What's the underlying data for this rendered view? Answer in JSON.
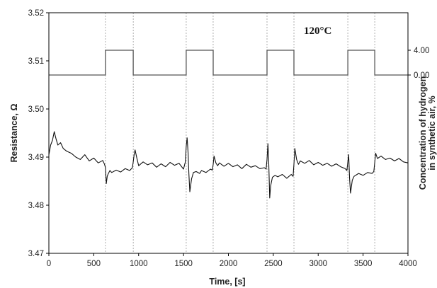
{
  "chart_data": {
    "type": "line",
    "xlabel": "Time, [s]",
    "ylabel": "Resistance, Ω",
    "y2label_line1": "Concentration of hydrogen",
    "y2label_line2": "in synthetic air, %",
    "annotation": "120°C",
    "xlim": [
      0,
      4000
    ],
    "ylim": [
      3.47,
      3.52
    ],
    "xticks": [
      "0",
      "500",
      "1000",
      "1500",
      "2000",
      "2500",
      "3000",
      "3500",
      "4000"
    ],
    "yticks": [
      "3.47",
      "3.48",
      "3.49",
      "3.50",
      "3.51",
      "3.52"
    ],
    "y2ticks": [
      "0.00",
      "4.00"
    ],
    "y2_values": [
      0.0,
      4.0
    ],
    "grid": "vertical dotted lines at gas switching times",
    "switch_times": [
      630,
      940,
      1530,
      1830,
      2430,
      2730,
      3330,
      3630
    ],
    "series": [
      {
        "role": "hydrogen concentration (right axis)",
        "x": [
          0,
          630,
          630,
          940,
          940,
          1530,
          1530,
          1830,
          1830,
          2430,
          2430,
          2730,
          2730,
          3330,
          3330,
          3630,
          3630,
          4000
        ],
        "values": [
          0,
          0,
          4,
          4,
          0,
          0,
          4,
          4,
          0,
          0,
          4,
          4,
          0,
          0,
          4,
          4,
          0,
          0
        ]
      },
      {
        "role": "resistance (left axis)",
        "x": [
          0,
          20,
          40,
          60,
          80,
          100,
          130,
          160,
          200,
          250,
          300,
          350,
          400,
          450,
          500,
          550,
          600,
          620,
          630,
          640,
          650,
          660,
          680,
          700,
          750,
          800,
          850,
          900,
          930,
          940,
          950,
          960,
          980,
          1000,
          1050,
          1100,
          1150,
          1200,
          1250,
          1300,
          1350,
          1400,
          1450,
          1500,
          1520,
          1530,
          1540,
          1550,
          1560,
          1570,
          1590,
          1610,
          1640,
          1680,
          1700,
          1750,
          1800,
          1820,
          1830,
          1840,
          1860,
          1880,
          1900,
          1950,
          2000,
          2050,
          2100,
          2150,
          2200,
          2250,
          2300,
          2350,
          2400,
          2420,
          2430,
          2440,
          2450,
          2460,
          2470,
          2490,
          2520,
          2550,
          2600,
          2650,
          2700,
          2720,
          2730,
          2740,
          2760,
          2780,
          2800,
          2850,
          2900,
          2950,
          3000,
          3050,
          3100,
          3150,
          3200,
          3250,
          3300,
          3320,
          3330,
          3340,
          3350,
          3360,
          3380,
          3400,
          3450,
          3500,
          3550,
          3600,
          3620,
          3630,
          3640,
          3660,
          3700,
          3750,
          3800,
          3850,
          3900,
          3950,
          4000
        ],
        "values": [
          3.4905,
          3.4925,
          3.4935,
          3.4953,
          3.4938,
          3.4925,
          3.493,
          3.4918,
          3.4912,
          3.4908,
          3.49,
          3.4895,
          3.4905,
          3.4892,
          3.4898,
          3.4888,
          3.4893,
          3.4885,
          3.4878,
          3.4845,
          3.486,
          3.4865,
          3.4872,
          3.4868,
          3.4873,
          3.4869,
          3.4876,
          3.4872,
          3.4878,
          3.489,
          3.4905,
          3.4915,
          3.4898,
          3.4882,
          3.489,
          3.4884,
          3.4888,
          3.4879,
          3.4886,
          3.488,
          3.4889,
          3.4883,
          3.4887,
          3.4875,
          3.489,
          3.4922,
          3.494,
          3.491,
          3.4865,
          3.4828,
          3.4855,
          3.4868,
          3.487,
          3.4866,
          3.4872,
          3.4868,
          3.4875,
          3.4873,
          3.4885,
          3.4902,
          3.4888,
          3.4882,
          3.4888,
          3.4881,
          3.4887,
          3.488,
          3.4884,
          3.4876,
          3.4885,
          3.4879,
          3.4882,
          3.4876,
          3.4878,
          3.4875,
          3.4895,
          3.4928,
          3.4885,
          3.4815,
          3.484,
          3.4858,
          3.4862,
          3.4859,
          3.4864,
          3.4856,
          3.4864,
          3.486,
          3.4885,
          3.4918,
          3.4895,
          3.4885,
          3.4892,
          3.4887,
          3.4893,
          3.4884,
          3.4889,
          3.4883,
          3.4887,
          3.4881,
          3.4886,
          3.488,
          3.4876,
          3.4872,
          3.489,
          3.4905,
          3.4855,
          3.4825,
          3.4852,
          3.486,
          3.4866,
          3.4862,
          3.4868,
          3.4866,
          3.487,
          3.4889,
          3.4908,
          3.4897,
          3.4902,
          3.4895,
          3.4898,
          3.4892,
          3.4897,
          3.489,
          3.4888
        ]
      }
    ]
  }
}
